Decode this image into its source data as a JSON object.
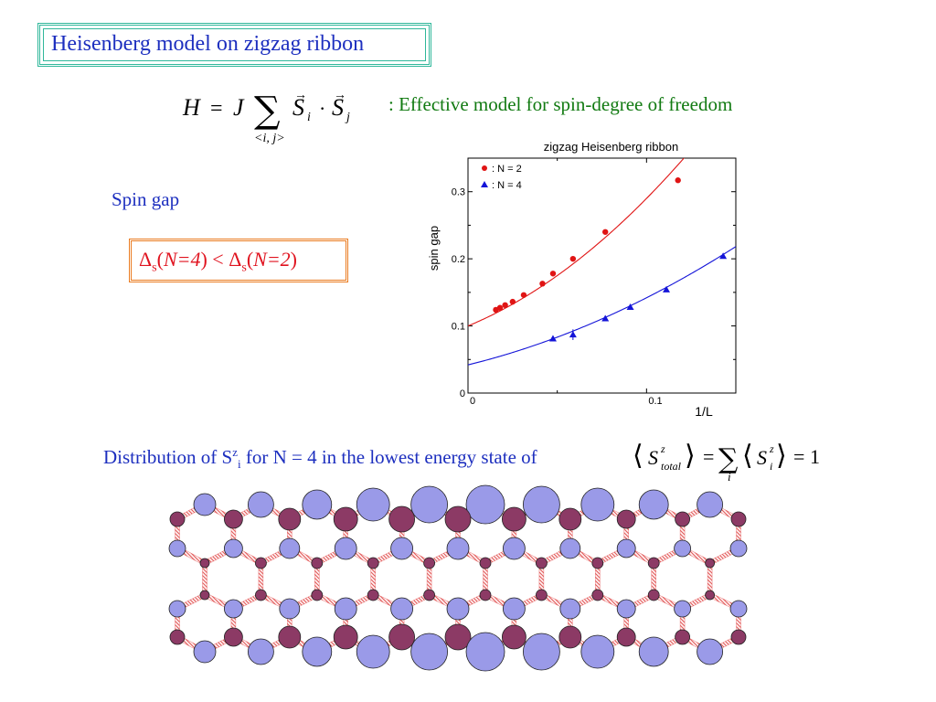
{
  "slide": {
    "title": "Heisenberg model on zigzag ribbon",
    "model_formula": "H = J Σ<i,j> S_i · S_j",
    "model_description": ": Effective model for spin-degree of freedom",
    "spin_gap_label": "Spin gap",
    "gap_relation": "Δs(N=4) < Δs(N=2)",
    "distribution_caption": "Distribution of Szi for N = 4 in the lowest energy state of",
    "sum_rule": "⟨S^z_total⟩ = Σ_i ⟨S^z_i⟩ = 1"
  },
  "chart_data": {
    "type": "scatter",
    "title": "zigzag Heisenberg ribbon",
    "xlabel": "1/L",
    "ylabel": "spin gap",
    "xlim": [
      0,
      0.15
    ],
    "ylim": [
      0,
      0.35
    ],
    "xticks": [
      "0",
      "0.1"
    ],
    "yticks": [
      "0",
      "0.1",
      "0.2",
      "0.3"
    ],
    "legend_position": "top-left",
    "series": [
      {
        "name": ": N = 2",
        "color": "#e01414",
        "marker": "circle",
        "x": [
          0.0156,
          0.0179,
          0.0208,
          0.025,
          0.0312,
          0.0417,
          0.0476,
          0.0588,
          0.0769,
          0.1176
        ],
        "y": [
          0.124,
          0.127,
          0.131,
          0.136,
          0.146,
          0.163,
          0.178,
          0.2,
          0.24,
          0.317
        ],
        "fit": [
          0.1,
          1.1,
          8.0
        ]
      },
      {
        "name": ": N = 4",
        "color": "#1414d8",
        "marker": "triangle",
        "x": [
          0.0476,
          0.0588,
          0.0769,
          0.0909,
          0.1111,
          0.1429
        ],
        "y": [
          0.081,
          0.087,
          0.111,
          0.128,
          0.154,
          0.204
        ],
        "fit": [
          0.042,
          0.65,
          3.5
        ]
      }
    ]
  },
  "lattice": {
    "site_colors": {
      "up": "#9a9ae8",
      "down": "#8c3a65"
    }
  }
}
